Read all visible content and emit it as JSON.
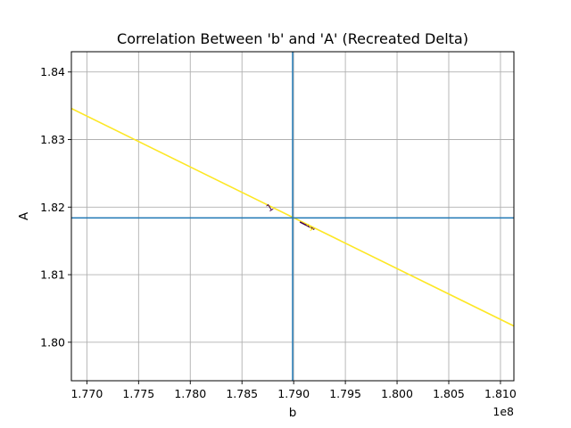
{
  "chart_data": {
    "type": "line",
    "title": "Correlation Between 'b' and 'A' (Recreated Delta)",
    "xlabel": "b",
    "ylabel": "A",
    "x_offset_label": "1e8",
    "xlim": [
      1.7685,
      1.8113
    ],
    "ylim": [
      1.7943,
      1.843
    ],
    "x_ticks": [
      1.77,
      1.775,
      1.78,
      1.785,
      1.79,
      1.795,
      1.8,
      1.805,
      1.81
    ],
    "x_tick_labels": [
      "1.770",
      "1.775",
      "1.780",
      "1.785",
      "1.790",
      "1.795",
      "1.800",
      "1.805",
      "1.810"
    ],
    "y_ticks": [
      1.8,
      1.81,
      1.82,
      1.83,
      1.84
    ],
    "y_tick_labels": [
      "1.80",
      "1.81",
      "1.82",
      "1.83",
      "1.84"
    ],
    "grid": true,
    "series": [
      {
        "color": "#fde725",
        "x": [
          1.7685,
          1.8113
        ],
        "y": [
          1.8346,
          1.8024
        ]
      },
      {
        "color": "#440154",
        "x": [
          1.7906,
          1.792
        ],
        "y": [
          1.8178,
          1.8167
        ]
      }
    ],
    "reference_lines": {
      "color": "#1f77b4",
      "vertical_x": 1.7899,
      "horizontal_y": 1.8184
    },
    "contour_labels": [
      {
        "text": "1",
        "x": 1.7877,
        "y": 1.8199,
        "color": "#440154"
      },
      {
        "text": "1",
        "x": 1.7916,
        "y": 1.817,
        "color": "#fde725"
      }
    ]
  }
}
